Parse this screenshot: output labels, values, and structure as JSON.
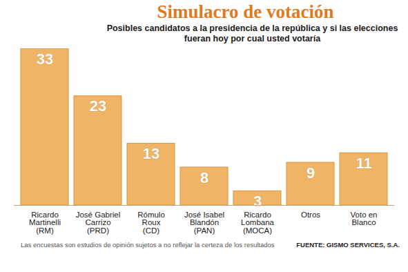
{
  "chart_data": {
    "type": "bar",
    "title": "Simulacro de votación",
    "subtitle": "Posibles candidatos a la  presidencia de la república y si las elecciones fueran hoy por cual usted votaría",
    "categories": [
      "Ricardo\nMartinelli\n(RM)",
      "José Gabriel\nCarrizo\n(PRD)",
      "Rómulo\nRoux\n(CD)",
      "José Isabel\nBlandón\n(PAN)",
      "Ricardo\nLombana\n(MOCA)",
      "Otros",
      "Voto en\nBlanco"
    ],
    "values": [
      33,
      23,
      13,
      8,
      3,
      9,
      11
    ],
    "color": "#f0b466",
    "ylim": [
      0,
      33
    ],
    "data_labels": true,
    "tick_labels": "x",
    "grid": false,
    "annotations": [
      "Las encuestas son estudios de opinión sujetos a no reflejar la certeza de los resultados"
    ],
    "source": "FUENTE: GISMO SERVICES, S.A."
  }
}
